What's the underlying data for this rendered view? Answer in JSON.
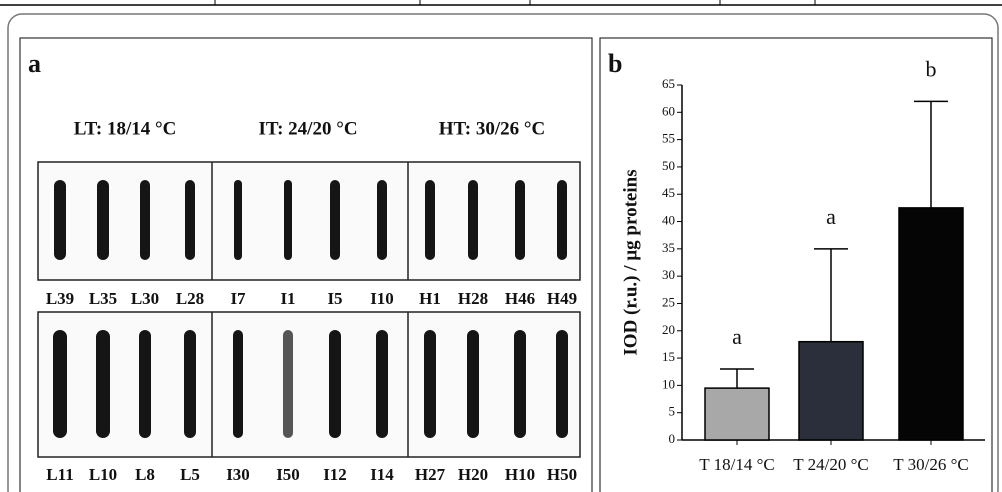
{
  "panel_a": {
    "label": "a",
    "groups": [
      "LT: 18/14 °C",
      "IT: 24/20 °C",
      "HT: 30/26 °C"
    ],
    "lanes_top": [
      "L39",
      "L35",
      "L30",
      "L28",
      "I7",
      "I1",
      "I5",
      "I10",
      "H1",
      "H28",
      "H46",
      "H49"
    ],
    "lanes_bottom": [
      "L11",
      "L10",
      "L8",
      "L5",
      "I30",
      "I50",
      "I12",
      "I14",
      "H27",
      "H20",
      "H10",
      "H50"
    ]
  },
  "panel_b": {
    "label": "b"
  },
  "chart_data": {
    "type": "bar",
    "y_label": "IOD (r.u.) / µg proteins",
    "categories": [
      "T 18/14 °C",
      "T 24/20 °C",
      "T 30/26 °C"
    ],
    "values": [
      9.5,
      18,
      42.5
    ],
    "errors": [
      3.5,
      17,
      19.5
    ],
    "annotations": [
      "a",
      "a",
      "b"
    ],
    "colors": [
      "#a8a8a8",
      "#2b2e3b",
      "#050505"
    ],
    "ylim": [
      0,
      65
    ],
    "yticks": [
      0,
      5,
      10,
      15,
      20,
      25,
      30,
      35,
      40,
      45,
      50,
      55,
      60,
      65
    ]
  }
}
